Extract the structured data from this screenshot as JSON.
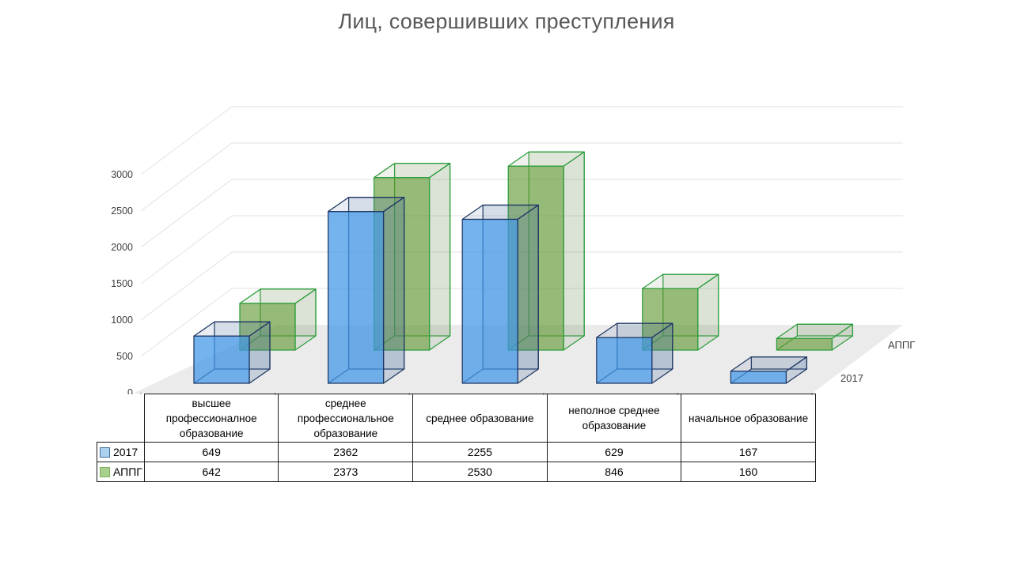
{
  "title": "Лиц, совершивших преступления",
  "chart_data": {
    "type": "bar",
    "variant": "3d-column",
    "title": "Лиц, совершивших преступления",
    "categories": [
      "высшее профессионалное образование",
      "среднее профессиональное образование",
      "среднее образование",
      "неполное среднее образование",
      "начальное образование"
    ],
    "series": [
      {
        "name": "2017",
        "values": [
          649,
          2362,
          2255,
          629,
          167
        ],
        "color_front": "rgba(64,150,232,0.72)",
        "color_side": "rgba(70,110,160,0.22)",
        "color_top": "rgba(70,110,160,0.12)",
        "edge": "#1F3864",
        "swatch": "#ADD2F0",
        "swatch_border": "#41719C"
      },
      {
        "name": "АППГ",
        "values": [
          642,
          2373,
          2530,
          846,
          160
        ],
        "color_front": "rgba(96,152,48,0.62)",
        "color_side": "rgba(120,150,100,0.16)",
        "color_top": "rgba(120,150,100,0.12)",
        "edge": "#2E9E3C",
        "swatch": "#A8D08D",
        "swatch_border": "#7FB35B"
      }
    ],
    "xlabel": "",
    "ylabel": "",
    "ylim": [
      0,
      3000
    ],
    "yticks": [
      0,
      500,
      1000,
      1500,
      2000,
      2500,
      3000
    ],
    "grid": true,
    "legend_position": "table-left",
    "axis_text_color": "#404040",
    "grid_color": "#E2E2E2",
    "floor_color": "#EBEBEB",
    "tick_color": "#8a8a8a"
  }
}
